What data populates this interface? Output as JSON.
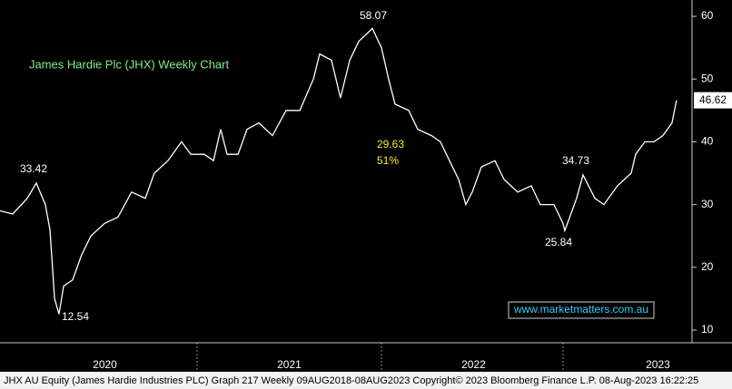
{
  "chart_data": {
    "type": "line",
    "title": "James Hardie Plc (JHX) Weekly Chart",
    "watermark": "www.marketmatters.com.au",
    "footer": "JHX AU Equity (James Hardie Industries PLC) Graph 217  Weekly 09AUG2018-08AUG2023  Copyright© 2023 Bloomberg Finance L.P.    08-Aug-2023 16:22:25",
    "annotations": [
      "33.42",
      "12.54",
      "58.07",
      "29.63",
      "51%",
      "25.84",
      "34.73"
    ],
    "last_price": 46.62,
    "color": "#ffffff",
    "x": [
      2019.931,
      2020.0,
      2020.079,
      2020.128,
      2020.177,
      2020.202,
      2020.227,
      2020.251,
      2020.276,
      2020.325,
      2020.374,
      2020.424,
      2020.498,
      2020.571,
      2020.645,
      2020.719,
      2020.768,
      2020.842,
      2020.916,
      2020.966,
      2021.039,
      2021.089,
      2021.128,
      2021.163,
      2021.222,
      2021.271,
      2021.335,
      2021.409,
      2021.483,
      2021.557,
      2021.631,
      2021.665,
      2021.729,
      2021.778,
      2021.828,
      2021.877,
      2021.951,
      2022.0,
      2022.039,
      2022.074,
      2022.148,
      2022.197,
      2022.271,
      2022.32,
      2022.369,
      2022.419,
      2022.458,
      2022.493,
      2022.542,
      2022.616,
      2022.665,
      2022.739,
      2022.813,
      2022.862,
      2022.936,
      2022.985,
      2022.995,
      2023.059,
      2023.094,
      2023.158,
      2023.207,
      2023.281,
      2023.355,
      2023.379,
      2023.429,
      2023.478,
      2023.527,
      2023.576,
      2023.601
    ],
    "values": [
      29,
      28.5,
      31,
      33.42,
      30,
      26,
      15,
      12.54,
      17,
      18,
      22,
      25,
      27,
      28,
      32,
      31,
      35,
      37,
      40,
      38,
      38,
      37,
      42,
      38,
      38,
      42,
      43,
      41,
      45,
      45,
      50,
      54,
      53,
      47,
      53,
      56,
      58.07,
      55,
      50,
      46,
      45,
      42,
      41,
      40,
      37,
      34,
      30,
      32,
      36,
      37,
      34,
      32,
      33,
      30,
      30,
      27,
      25.84,
      31,
      34.73,
      31,
      30,
      33,
      35,
      38,
      40,
      40,
      41,
      43,
      46.62
    ],
    "xlim": [
      2019.931,
      2023.685
    ],
    "xticks": [
      {
        "value": 2020.5,
        "label": "2020"
      },
      {
        "value": 2021.5,
        "label": "2021"
      },
      {
        "value": 2022.5,
        "label": "2022"
      },
      {
        "value": 2023.5,
        "label": "2023"
      }
    ],
    "ylim": [
      10,
      60
    ],
    "yticks": [
      10,
      20,
      30,
      40,
      50,
      60
    ]
  }
}
